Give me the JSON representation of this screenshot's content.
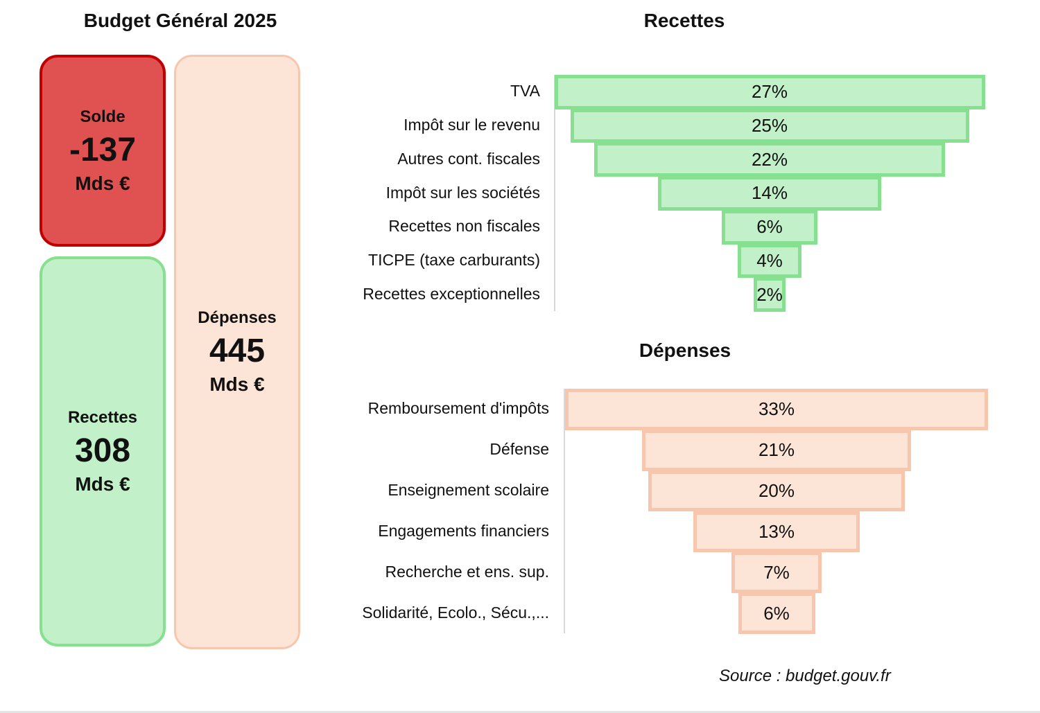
{
  "page_title": "Budget Général 2025",
  "summary": {
    "solde": {
      "label": "Solde",
      "value": "-137",
      "unit": "Mds €",
      "fill": "#e05252",
      "border": "#c00000"
    },
    "recettes": {
      "label": "Recettes",
      "value": "308",
      "unit": "Mds €",
      "fill": "#c2f0c8",
      "border": "#86e08f"
    },
    "depenses": {
      "label": "Dépenses",
      "value": "445",
      "unit": "Mds €",
      "fill": "#fce4d6",
      "border": "#f7c6ac"
    }
  },
  "chart_data": [
    {
      "type": "bar",
      "subtype": "funnel",
      "title": "Recettes",
      "categories": [
        "TVA",
        "Impôt sur le revenu",
        "Autres cont. fiscales",
        "Impôt sur les sociétés",
        "Recettes non fiscales",
        "TICPE (taxe carburants)",
        "Recettes exceptionnelles"
      ],
      "values": [
        27,
        25,
        22,
        14,
        6,
        4,
        2
      ],
      "data_labels": [
        "27%",
        "25%",
        "22%",
        "14%",
        "6%",
        "4%",
        "2%"
      ],
      "unit": "%",
      "fill": "#c2f0c8",
      "border": "#86e08f"
    },
    {
      "type": "bar",
      "subtype": "funnel",
      "title": "Dépenses",
      "categories": [
        "Remboursement d'impôts",
        "Défense",
        "Enseignement scolaire",
        "Engagements financiers",
        "Recherche et ens. sup.",
        "Solidarité, Ecolo., Sécu.,..."
      ],
      "values": [
        33,
        21,
        20,
        13,
        7,
        6
      ],
      "data_labels": [
        "33%",
        "21%",
        "20%",
        "13%",
        "7%",
        "6%"
      ],
      "unit": "%",
      "fill": "#fce4d6",
      "border": "#f7c6ac"
    }
  ],
  "source": "Source : budget.gouv.fr"
}
